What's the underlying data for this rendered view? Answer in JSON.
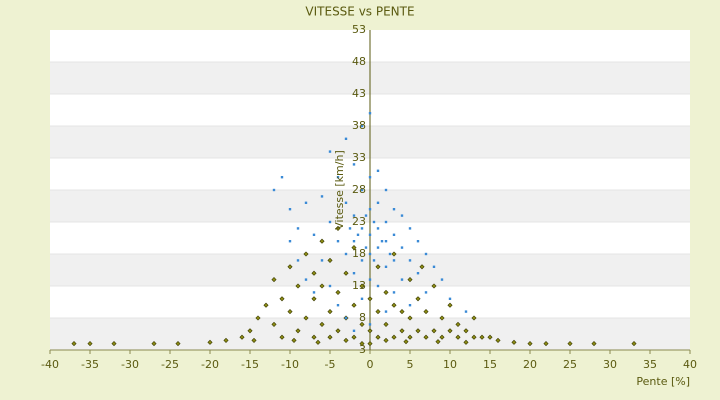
{
  "chart_data": {
    "type": "scatter",
    "title": "VITESSE vs PENTE",
    "x_label": "Pente [%]",
    "y_label": "Vitesse [km/h]",
    "xlim": [
      -40,
      40
    ],
    "xticks": [
      -40,
      -35,
      -30,
      -25,
      -20,
      -15,
      -10,
      -5,
      0,
      5,
      10,
      15,
      20,
      25,
      30,
      35,
      40
    ],
    "ylim": [
      3,
      53
    ],
    "yticks": [
      3,
      8,
      13,
      18,
      23,
      28,
      33,
      38,
      43,
      48,
      53
    ],
    "grid": true,
    "series": [
      {
        "color": "#8c8c14",
        "x": [
          -37,
          -35,
          -32,
          -27,
          -24,
          -20,
          -18,
          -16,
          -15,
          -14,
          -13,
          -12,
          -12,
          -11,
          -11,
          -10,
          -10,
          -9,
          -9,
          -8,
          -8,
          -7,
          -7,
          -7,
          -6,
          -6,
          -6,
          -5,
          -5,
          -5,
          -4,
          -4,
          -4,
          -3,
          -3,
          -3,
          -2,
          -2,
          -2,
          -1,
          -1,
          -1,
          0,
          0,
          0,
          1,
          1,
          1,
          2,
          2,
          2,
          3,
          3,
          3,
          4,
          4,
          5,
          5,
          5,
          6,
          6,
          7,
          7,
          8,
          8,
          9,
          9,
          10,
          10,
          11,
          11,
          12,
          13,
          13,
          14,
          15,
          16,
          18,
          20,
          22,
          25,
          28,
          33,
          -14.5,
          -9.5,
          -6.5,
          4.5,
          8.5,
          12,
          6.5
        ],
        "values": [
          4,
          4,
          4,
          4,
          4,
          4.2,
          4.5,
          5,
          6,
          8,
          10,
          7,
          14,
          5,
          11,
          9,
          16,
          6,
          13,
          8,
          18,
          5,
          11,
          15,
          7,
          13,
          20,
          5,
          9,
          17,
          6,
          12,
          22,
          4.5,
          8,
          15,
          5,
          10,
          19,
          4,
          7,
          13,
          4,
          6,
          11,
          5,
          9,
          16,
          4.5,
          7,
          12,
          5,
          10,
          18,
          6,
          9,
          5,
          8,
          14,
          6,
          11,
          5,
          9,
          6,
          13,
          5,
          8,
          6,
          10,
          5,
          7,
          6,
          5,
          8,
          5,
          5,
          4.5,
          4.2,
          4,
          4,
          4,
          4,
          4,
          4.5,
          4.5,
          4.2,
          4.3,
          4.3,
          4.2,
          16
        ]
      },
      {
        "color": "#3a8ad6",
        "x": [
          -12,
          -11,
          -10,
          -10,
          -9,
          -9,
          -8,
          -8,
          -7,
          -7,
          -6,
          -6,
          -5,
          -5,
          -5,
          -4,
          -4,
          -4,
          -3,
          -3,
          -3,
          -3,
          -2,
          -2,
          -2,
          -2,
          -2,
          -1,
          -1,
          -1,
          -1,
          -1,
          0,
          0,
          0,
          0,
          0,
          0,
          0,
          1,
          1,
          1,
          1,
          1,
          2,
          2,
          2,
          2,
          2,
          3,
          3,
          3,
          3,
          4,
          4,
          4,
          5,
          5,
          5,
          6,
          6,
          7,
          7,
          8,
          9,
          10,
          12,
          -0.5,
          0.5,
          -1.5,
          1.5,
          -0.5,
          0.5,
          -2.5,
          2.5
        ],
        "values": [
          28,
          30,
          25,
          20,
          22,
          17,
          26,
          14,
          21,
          12,
          27,
          17,
          34,
          23,
          13,
          30,
          20,
          10,
          36,
          26,
          18,
          8,
          32,
          24,
          20,
          15,
          6,
          38,
          28,
          22,
          17,
          11,
          40,
          30,
          25,
          21,
          18,
          14,
          7,
          31,
          26,
          22,
          19,
          13,
          28,
          23,
          20,
          16,
          9,
          25,
          21,
          17,
          12,
          24,
          19,
          14,
          22,
          17,
          10,
          20,
          15,
          18,
          12,
          16,
          14,
          11,
          9,
          24,
          23,
          21,
          20,
          19,
          17,
          22,
          18
        ]
      }
    ]
  }
}
